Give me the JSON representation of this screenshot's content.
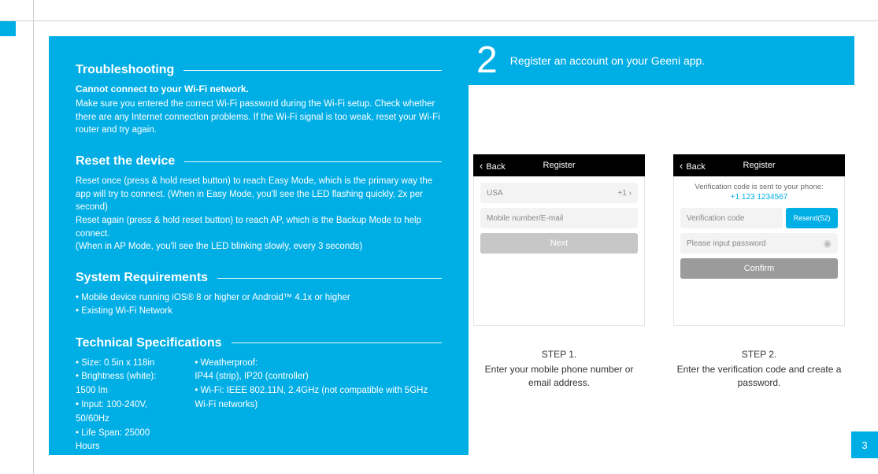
{
  "colors": {
    "brand": "#00aee6",
    "bg": "#ffffff"
  },
  "left": {
    "troubleshooting": {
      "title": "Troubleshooting",
      "subtitle": "Cannot connect to your Wi-Fi network.",
      "body": "Make sure you entered the correct Wi-Fi password during the Wi-Fi setup. Check whether there are any Internet connection problems. If the Wi-Fi signal is too weak, reset your Wi-Fi router and try again."
    },
    "reset": {
      "title": "Reset the device",
      "body": "Reset once (press & hold reset button) to reach Easy Mode, which is the primary way the app will try to connect. (When in Easy Mode, you'll see the LED flashing quickly, 2x per second)\nReset again (press & hold reset button) to reach AP, which is the Backup Mode to help connect.\n(When in AP Mode, you'll see the LED blinking slowly, every 3 seconds)"
    },
    "sysreq": {
      "title": "System Requirements",
      "items": [
        "• Mobile device running iOS® 8 or higher or Android™ 4.1x or higher",
        "• Existing Wi-Fi Network"
      ]
    },
    "tech": {
      "title": "Technical Specifications",
      "col1": [
        "• Size: 0.5in x 118in",
        "• Brightness (white): 1500 lm",
        "• Input: 100-240V, 50/60Hz",
        "• Life Span: 25000 Hours"
      ],
      "col2": [
        "• Weatherproof:",
        "IP44 (strip), IP20 (controller)",
        "• Wi-Fi: IEEE 802.11N, 2.4GHz   (not compatible with 5GHz Wi-Fi networks)"
      ]
    }
  },
  "right": {
    "stepnum": "2",
    "steptext": "Register an account on your Geeni app.",
    "phone1": {
      "back": "Back",
      "title": "Register",
      "country": "USA",
      "code": "+1",
      "placeholder": "Mobile number/E-mail",
      "next": "Next"
    },
    "phone2": {
      "back": "Back",
      "title": "Register",
      "sent": "Verification code is sent to your phone:",
      "num": "+1 123 1234567",
      "vcode": "Verification code",
      "resend": "Resend(52)",
      "pw": "Please input password",
      "confirm": "Confirm"
    },
    "cap1": {
      "title": "STEP 1.",
      "text": "Enter your mobile phone number or email address."
    },
    "cap2": {
      "title": "STEP 2.",
      "text": "Enter the verification code and create a password."
    }
  },
  "pagenum": "3"
}
